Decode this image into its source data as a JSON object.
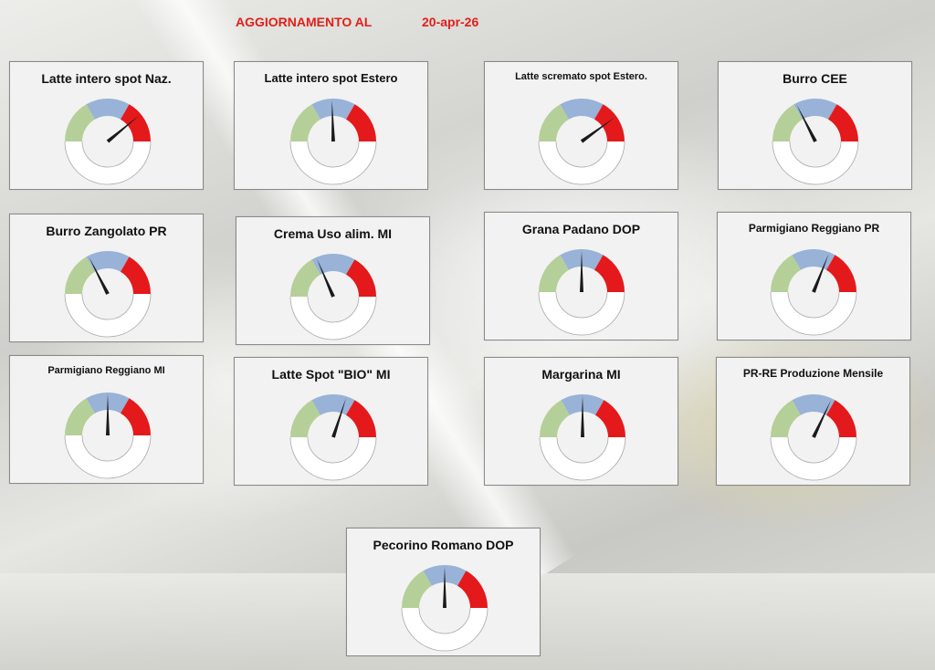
{
  "header": {
    "label": "AGGIORNAMENTO AL",
    "date": "20-apr-26"
  },
  "colors": {
    "green": "#b5cf99",
    "blue": "#98b2d8",
    "red": "#e4191b",
    "needle": "#1a1a1a",
    "card": "#f2f2f2"
  },
  "gauges": [
    {
      "title": "Latte intero spot Naz.",
      "needle_value": 0.78
    },
    {
      "title": "Latte intero spot Estero",
      "needle_value": 0.49
    },
    {
      "title": "Latte scremato spot Estero.",
      "needle_value": 0.8
    },
    {
      "title": "Burro CEE",
      "needle_value": 0.35
    },
    {
      "title": "Burro Zangolato PR",
      "needle_value": 0.35
    },
    {
      "title": "Crema Uso alim. MI",
      "needle_value": 0.37
    },
    {
      "title": "Grana Padano DOP",
      "needle_value": 0.5
    },
    {
      "title": "Parmigiano Reggiano PR",
      "needle_value": 0.62
    },
    {
      "title": "Parmigiano Reggiano MI",
      "needle_value": 0.5
    },
    {
      "title": "Latte Spot \"BIO\" MI",
      "needle_value": 0.6
    },
    {
      "title": "Margarina MI",
      "needle_value": 0.5
    },
    {
      "title": "PR-RE Produzione Mensile",
      "needle_value": 0.64
    },
    {
      "title": "Pecorino Romano DOP",
      "needle_value": 0.5
    }
  ]
}
